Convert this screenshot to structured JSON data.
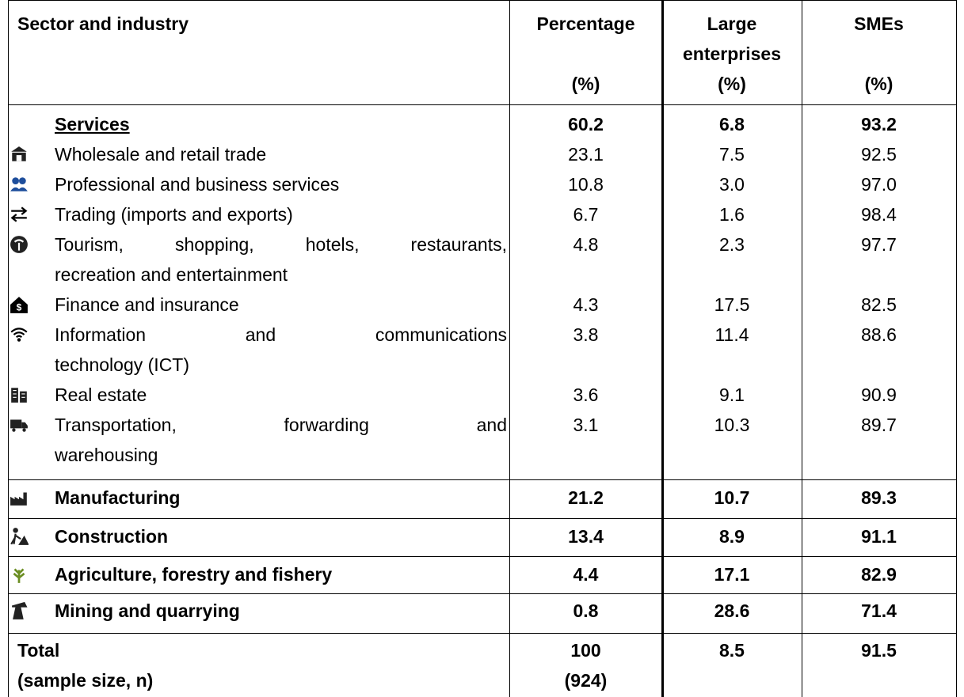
{
  "table": {
    "columns": [
      {
        "label": "Sector and industry"
      },
      {
        "label": "Percentage",
        "unit": "(%)"
      },
      {
        "label": [
          "Large",
          "enterprises"
        ],
        "unit": "(%)"
      },
      {
        "label": "SMEs",
        "unit": "(%)"
      }
    ],
    "services": {
      "label": "Services",
      "values": [
        "60.2",
        "6.8",
        "93.2"
      ],
      "items": [
        {
          "label": "Wholesale and retail trade",
          "values": [
            "23.1",
            "7.5",
            "92.5"
          ]
        },
        {
          "label": "Professional and business services",
          "values": [
            "10.8",
            "3.0",
            "97.0"
          ]
        },
        {
          "label": "Trading (imports and exports)",
          "values": [
            "6.7",
            "1.6",
            "98.4"
          ]
        },
        {
          "label": [
            "Tourism, shopping, hotels, restaurants,",
            "recreation and entertainment"
          ],
          "values": [
            "4.8",
            "2.3",
            "97.7"
          ]
        },
        {
          "label": "Finance and insurance",
          "values": [
            "4.3",
            "17.5",
            "82.5"
          ]
        },
        {
          "label": [
            "Information and communications",
            "technology (ICT)"
          ],
          "values": [
            "3.8",
            "11.4",
            "88.6"
          ]
        },
        {
          "label": "Real estate",
          "values": [
            "3.6",
            "9.1",
            "90.9"
          ]
        },
        {
          "label": [
            "Transportation, forwarding and",
            "warehousing"
          ],
          "values": [
            "3.1",
            "10.3",
            "89.7"
          ]
        }
      ]
    },
    "sectors": [
      {
        "label": "Manufacturing",
        "values": [
          "21.2",
          "10.7",
          "89.3"
        ]
      },
      {
        "label": "Construction",
        "values": [
          "13.4",
          "8.9",
          "91.1"
        ]
      },
      {
        "label": "Agriculture, forestry and fishery",
        "values": [
          "4.4",
          "17.1",
          "82.9"
        ]
      },
      {
        "label": "Mining and quarrying",
        "values": [
          "0.8",
          "28.6",
          "71.4"
        ]
      }
    ],
    "total": {
      "label": "Total",
      "sample_label": "(sample size, n)",
      "values": [
        "100",
        "8.5",
        "91.5"
      ],
      "sample_size": "(924)"
    }
  }
}
